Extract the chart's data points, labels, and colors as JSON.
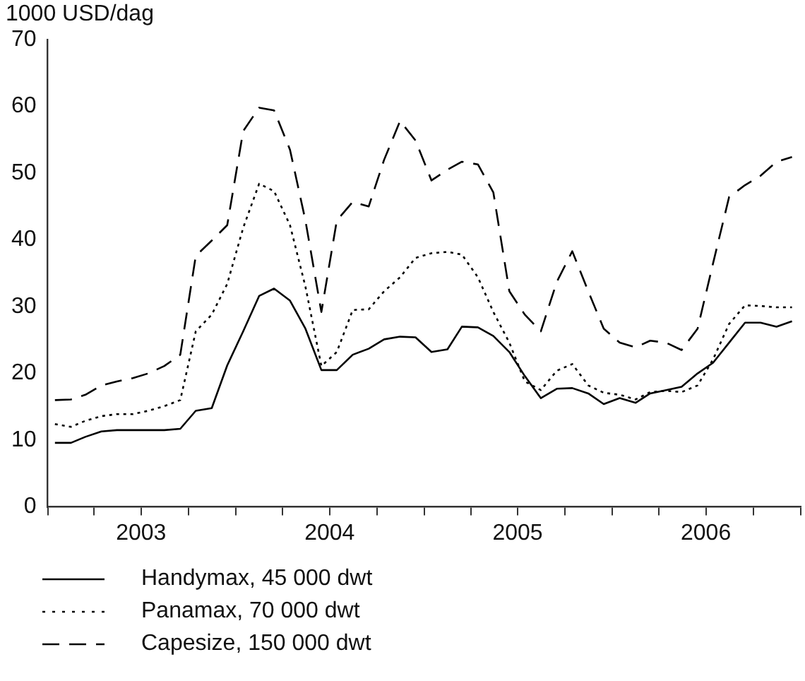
{
  "chart_data": {
    "type": "line",
    "ylabel": "1000 USD/dag",
    "x": [
      "2003-01-15",
      "2003-02-15",
      "2003-03-15",
      "2003-04-15",
      "2003-05-15",
      "2003-06-15",
      "2003-07-15",
      "2003-08-15",
      "2003-09-15",
      "2003-10-15",
      "2003-11-15",
      "2003-12-15",
      "2004-01-15",
      "2004-02-15",
      "2004-03-15",
      "2004-04-15",
      "2004-05-15",
      "2004-06-15",
      "2004-07-15",
      "2004-08-15",
      "2004-09-15",
      "2004-10-15",
      "2004-11-15",
      "2004-12-15",
      "2005-01-15",
      "2005-02-15",
      "2005-03-15",
      "2005-04-15",
      "2005-05-15",
      "2005-06-15",
      "2005-07-15",
      "2005-08-15",
      "2005-09-15",
      "2005-10-15",
      "2005-11-15",
      "2005-12-15",
      "2006-01-15",
      "2006-02-15",
      "2006-03-15",
      "2006-04-15",
      "2006-05-15",
      "2006-06-15",
      "2006-07-15",
      "2006-08-15",
      "2006-09-15",
      "2006-10-15",
      "2006-11-15",
      "2006-12-15"
    ],
    "series": [
      {
        "name": "Handymax, 45 000 dwt",
        "color": "#000000",
        "line_style": "solid",
        "values": [
          9.6,
          9.6,
          10.5,
          11.3,
          11.5,
          11.5,
          11.5,
          11.5,
          11.7,
          14.4,
          14.8,
          21.2,
          26.3,
          31.6,
          32.7,
          30.9,
          26.7,
          20.5,
          20.5,
          22.8,
          23.7,
          25.1,
          25.5,
          25.4,
          23.2,
          23.6,
          27.0,
          26.9,
          25.6,
          23.2,
          19.6,
          16.3,
          17.7,
          17.8,
          17.0,
          15.4,
          16.3,
          15.6,
          17.0,
          17.5,
          18.0,
          20.0,
          21.6,
          24.6,
          27.6,
          27.6,
          27.0,
          27.8
        ]
      },
      {
        "name": "Panamax, 70 000 dwt",
        "color": "#000000",
        "line_style": "dotted",
        "values": [
          12.4,
          12.0,
          12.9,
          13.6,
          13.9,
          13.9,
          14.4,
          15.1,
          16.0,
          26.3,
          28.8,
          33.4,
          41.8,
          48.4,
          47.3,
          42.2,
          33.0,
          21.1,
          23.2,
          29.5,
          29.6,
          32.3,
          34.4,
          37.3,
          38.0,
          38.2,
          37.8,
          34.4,
          29.2,
          24.6,
          18.8,
          17.5,
          20.4,
          21.4,
          18.2,
          17.1,
          16.8,
          16.1,
          17.2,
          17.4,
          17.2,
          18.2,
          22.1,
          27.4,
          30.2,
          30.1,
          29.9,
          29.9
        ]
      },
      {
        "name": "Capesize, 150 000 dwt",
        "color": "#000000",
        "line_style": "dashed",
        "values": [
          16.0,
          16.1,
          16.8,
          18.2,
          18.8,
          19.3,
          20.0,
          21.1,
          22.8,
          37.6,
          39.9,
          42.2,
          56.3,
          59.8,
          59.4,
          53.5,
          42.9,
          29.2,
          42.9,
          45.7,
          45.0,
          52.0,
          57.8,
          54.9,
          48.9,
          50.5,
          51.7,
          51.3,
          47.1,
          32.3,
          28.8,
          26.3,
          33.7,
          38.3,
          32.3,
          26.7,
          24.6,
          23.9,
          24.9,
          24.6,
          23.5,
          26.7,
          36.5,
          46.4,
          48.2,
          49.6,
          51.7,
          52.4
        ]
      }
    ],
    "xlim": [
      "2003-01-01",
      "2007-01-01"
    ],
    "xticks": [
      {
        "value": "2003-01-01",
        "label": null
      },
      {
        "value": "2003-04-01",
        "label": null
      },
      {
        "value": "2003-07-01",
        "label": "2003"
      },
      {
        "value": "2003-10-01",
        "label": null
      },
      {
        "value": "2004-01-01",
        "label": null
      },
      {
        "value": "2004-04-01",
        "label": null
      },
      {
        "value": "2004-07-01",
        "label": "2004"
      },
      {
        "value": "2004-10-01",
        "label": null
      },
      {
        "value": "2005-01-01",
        "label": null
      },
      {
        "value": "2005-04-01",
        "label": null
      },
      {
        "value": "2005-07-01",
        "label": "2005"
      },
      {
        "value": "2005-10-01",
        "label": null
      },
      {
        "value": "2006-01-01",
        "label": null
      },
      {
        "value": "2006-04-01",
        "label": null
      },
      {
        "value": "2006-07-01",
        "label": "2006"
      },
      {
        "value": "2006-10-01",
        "label": null
      },
      {
        "value": "2007-01-01",
        "label": null
      }
    ],
    "ylim": [
      0,
      70
    ],
    "yticks": [
      0,
      10,
      20,
      30,
      40,
      50,
      60,
      70
    ],
    "grid": false,
    "legend": "bottom",
    "marker": "none"
  }
}
